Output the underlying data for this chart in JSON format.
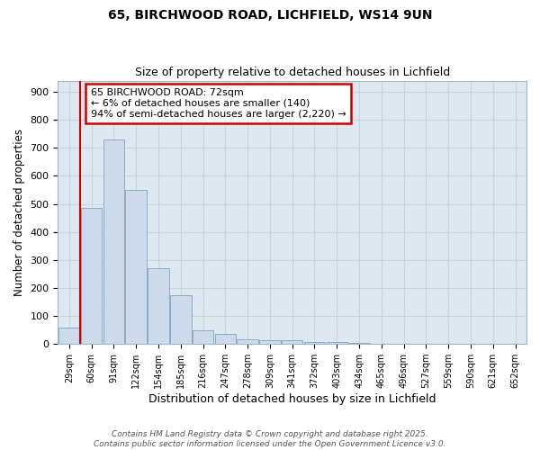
{
  "title1": "65, BIRCHWOOD ROAD, LICHFIELD, WS14 9UN",
  "title2": "Size of property relative to detached houses in Lichfield",
  "xlabel": "Distribution of detached houses by size in Lichfield",
  "ylabel": "Number of detached properties",
  "categories": [
    "29sqm",
    "60sqm",
    "91sqm",
    "122sqm",
    "154sqm",
    "185sqm",
    "216sqm",
    "247sqm",
    "278sqm",
    "309sqm",
    "341sqm",
    "372sqm",
    "403sqm",
    "434sqm",
    "465sqm",
    "496sqm",
    "527sqm",
    "559sqm",
    "590sqm",
    "621sqm",
    "652sqm"
  ],
  "values": [
    60,
    485,
    730,
    550,
    270,
    175,
    50,
    35,
    18,
    13,
    13,
    7,
    7,
    3,
    0,
    0,
    0,
    0,
    0,
    0,
    0
  ],
  "bar_color": "#ccdaec",
  "bar_edge_color": "#8aaac8",
  "red_line_color": "#cc0000",
  "annotation_text": "65 BIRCHWOOD ROAD: 72sqm\n← 6% of detached houses are smaller (140)\n94% of semi-detached houses are larger (2,220) →",
  "annotation_box_color": "#ffffff",
  "annotation_box_edge": "#cc0000",
  "grid_color": "#c8d4e0",
  "bg_color": "#dde8f0",
  "fig_bg_color": "#ffffff",
  "footer_text": "Contains HM Land Registry data © Crown copyright and database right 2025.\nContains public sector information licensed under the Open Government Licence v3.0.",
  "ylim": [
    0,
    940
  ],
  "yticks": [
    0,
    100,
    200,
    300,
    400,
    500,
    600,
    700,
    800,
    900
  ]
}
